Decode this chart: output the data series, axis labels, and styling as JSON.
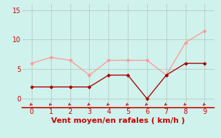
{
  "x": [
    0,
    1,
    2,
    3,
    4,
    5,
    6,
    7,
    8,
    9
  ],
  "y_mean": [
    2,
    2,
    2,
    2,
    4,
    4,
    0,
    4,
    6,
    6
  ],
  "y_gust": [
    6,
    7,
    6.5,
    4,
    6.5,
    6.5,
    6.5,
    4,
    9.5,
    11.5
  ],
  "color_mean": "#aa0000",
  "color_gust": "#ff9999",
  "xlabel": "Vent moyen/en rafales ( km/h )",
  "xlabel_color": "#cc0000",
  "xlim": [
    -0.5,
    9.5
  ],
  "ylim": [
    -1.5,
    16
  ],
  "bg_color": "#cff2ec",
  "grid_color": "#aaaaaa",
  "tick_color": "#cc0000",
  "arrow_color": "#cc0000",
  "yticks": [
    0,
    5,
    10,
    15
  ],
  "xticks": [
    0,
    1,
    2,
    3,
    4,
    5,
    6,
    7,
    8,
    9
  ],
  "tick_fontsize": 7,
  "xlabel_fontsize": 8
}
